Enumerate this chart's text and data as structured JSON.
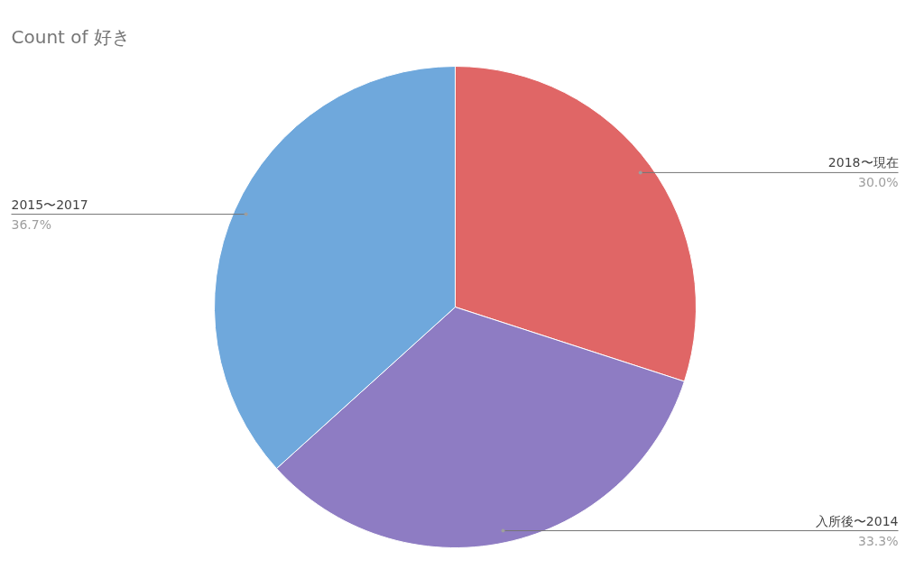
{
  "chart_data": {
    "type": "pie",
    "title": "Count of 好き",
    "categories": [
      "2018〜現在",
      "入所後〜2014",
      "2015〜2017"
    ],
    "values": [
      30.0,
      33.3,
      36.7
    ],
    "colors": [
      "#e06666",
      "#8e7cc3",
      "#6fa8dc"
    ],
    "value_labels": [
      "30.0%",
      "33.3%",
      "36.7%"
    ]
  }
}
